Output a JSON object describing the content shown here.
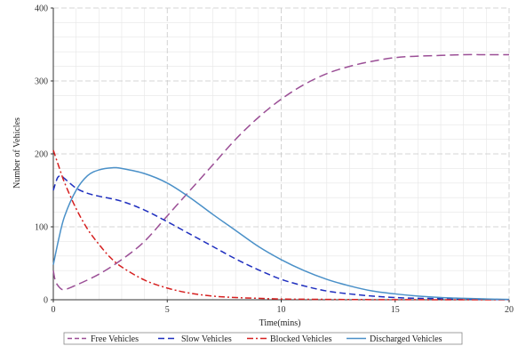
{
  "chart_data": {
    "type": "line",
    "title": "",
    "xlabel": "Time(mins)",
    "ylabel": "Number of Vehicles",
    "xlim": [
      0,
      20
    ],
    "ylim": [
      0,
      400
    ],
    "xticks": [
      0,
      5,
      10,
      15,
      20
    ],
    "yticks": [
      0,
      100,
      200,
      300,
      400
    ],
    "grid": true,
    "legend_position": "bottom",
    "series": [
      {
        "name": "Free Vehicles",
        "color": "#9b4f96",
        "dash": "long-dash",
        "x": [
          0,
          0.1,
          0.3,
          0.5,
          1,
          2,
          3,
          4,
          5,
          6,
          7,
          8,
          9,
          10,
          11,
          12,
          13,
          14,
          15,
          16,
          17,
          18,
          19,
          20
        ],
        "y": [
          40,
          25,
          16,
          14,
          20,
          35,
          55,
          80,
          115,
          150,
          185,
          220,
          250,
          275,
          295,
          310,
          320,
          327,
          332,
          334,
          335,
          336,
          336,
          336
        ]
      },
      {
        "name": "Slow Vehicles",
        "color": "#1f2fbf",
        "dash": "dash",
        "x": [
          0,
          0.1,
          0.2,
          0.35,
          0.5,
          1,
          1.5,
          2,
          3,
          4,
          5,
          6,
          7,
          8,
          9,
          10,
          11,
          12,
          13,
          14,
          15,
          16,
          17,
          18,
          19,
          20
        ],
        "y": [
          150,
          160,
          168,
          170,
          166,
          153,
          146,
          142,
          135,
          123,
          107,
          90,
          73,
          56,
          41,
          28,
          19,
          12,
          8,
          5,
          3,
          2,
          1.5,
          1,
          0.5,
          0.3
        ]
      },
      {
        "name": "Blocked Vehicles",
        "color": "#d62020",
        "dash": "dash-dot",
        "x": [
          0,
          0.25,
          0.5,
          1,
          1.5,
          2,
          2.5,
          3,
          4,
          5,
          6,
          7,
          8,
          9,
          10,
          12,
          14,
          16,
          18,
          20
        ],
        "y": [
          205,
          182,
          160,
          125,
          97,
          76,
          58,
          45,
          27,
          16,
          9,
          5,
          3,
          2,
          1,
          0.5,
          0.2,
          0.1,
          0,
          0
        ]
      },
      {
        "name": "Discharged Vehicles",
        "color": "#4a90c8",
        "dash": "solid",
        "x": [
          0,
          0.25,
          0.5,
          1,
          1.5,
          2,
          2.6,
          3,
          4,
          5,
          6,
          7,
          8,
          9,
          10,
          11,
          12,
          13,
          14,
          15,
          16,
          17,
          18,
          19,
          20
        ],
        "y": [
          48,
          85,
          115,
          150,
          170,
          178,
          181,
          180,
          173,
          160,
          140,
          117,
          95,
          73,
          55,
          40,
          28,
          19,
          12,
          8,
          5,
          3,
          2,
          1,
          0.5
        ]
      }
    ]
  }
}
